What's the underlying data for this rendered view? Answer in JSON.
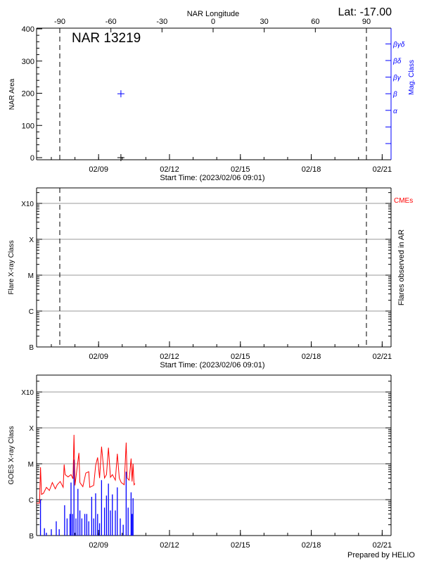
{
  "header": {
    "latitude_label": "Lat: -17.00",
    "footer": "Prepared by HELIO"
  },
  "start_time_label": "Start Time: (2023/02/06 09:01)",
  "xlim": [
    "2023-02-06T09:01",
    "2023-02-21T09:01"
  ],
  "x_tick_labels": [
    "02/09",
    "02/12",
    "02/15",
    "02/18",
    "02/21"
  ],
  "x_tick_dates": [
    "2023-02-09T00:00",
    "2023-02-12T00:00",
    "2023-02-15T00:00",
    "2023-02-18T00:00",
    "2023-02-21T00:00"
  ],
  "limb_times": [
    "2023-02-07T08:35",
    "2023-02-20T08:00"
  ],
  "colors": {
    "area": "#000000",
    "mag": "#0000ff",
    "cme": "#ff0000",
    "goes_long": "#ff0000",
    "goes_short": "#0000ff",
    "grid": "#999999"
  },
  "chart_data": [
    {
      "type": "scatter",
      "title": "NAR 13219",
      "top_xlabel": "NAR Longitude",
      "top_x_ticks": [
        -90,
        -60,
        -30,
        0,
        30,
        60,
        90
      ],
      "top_x_tick_labels": [
        "-90",
        "-60",
        "-30",
        "0",
        "30",
        "60",
        "90"
      ],
      "ylabel": "NAR Area",
      "ylim": [
        0,
        400
      ],
      "y_ticks": [
        0,
        100,
        200,
        300,
        400
      ],
      "y_tick_labels": [
        "0",
        "100",
        "200",
        "300",
        "400"
      ],
      "y2label": "Mag. Class",
      "y2_tick_labels": [
        "",
        "",
        "α",
        "β",
        "βγ",
        "βδ",
        "βγδ"
      ],
      "xlabel": "Start Time: (2023/02/06 09:01)",
      "series": [
        {
          "name": "NAR Area",
          "points": [
            {
              "x": "2023-02-09T22:40",
              "y": 0
            }
          ]
        },
        {
          "name": "Mag. Class",
          "points": [
            {
              "x": "2023-02-09T22:40",
              "y": "β"
            }
          ]
        }
      ]
    },
    {
      "type": "scatter",
      "ylabel": "Flare X-ray Class",
      "y2label": "Flares observed in AR",
      "legend": "CMEs",
      "y_tick_labels": [
        "B",
        "C",
        "M",
        "X",
        "X10"
      ],
      "y_tick_values": [
        1e-07,
        1e-06,
        1e-05,
        0.0001,
        0.001
      ],
      "y_scale": "log",
      "grid": true,
      "xlabel": "Start Time: (2023/02/06 09:01)",
      "series": []
    },
    {
      "type": "line",
      "ylabel": "GOES X-ray Class",
      "y_tick_labels": [
        "B",
        "C",
        "M",
        "X",
        "X10"
      ],
      "y_tick_values": [
        1e-07,
        1e-06,
        1e-05,
        0.0001,
        0.001
      ],
      "y_scale": "log",
      "grid": true,
      "series": [
        {
          "color": "#ff0000",
          "points": [
            [
              "2023-02-06T09:01",
              8e-07
            ],
            [
              "2023-02-06T12:00",
              8e-07
            ],
            [
              "2023-02-06T13:00",
              8e-06
            ],
            [
              "2023-02-06T14:00",
              1.4e-06
            ],
            [
              "2023-02-06T16:00",
              1.5e-06
            ],
            [
              "2023-02-06T19:00",
              2.2e-06
            ],
            [
              "2023-02-06T22:00",
              1.8e-06
            ],
            [
              "2023-02-07T01:00",
              3e-06
            ],
            [
              "2023-02-07T04:00",
              2e-06
            ],
            [
              "2023-02-07T06:00",
              2.6e-06
            ],
            [
              "2023-02-07T09:00",
              3.2e-06
            ],
            [
              "2023-02-07T12:00",
              2.2e-06
            ],
            [
              "2023-02-07T13:00",
              9.5e-06
            ],
            [
              "2023-02-07T14:00",
              5e-06
            ],
            [
              "2023-02-07T17:00",
              4.3e-06
            ],
            [
              "2023-02-07T20:00",
              5e-06
            ],
            [
              "2023-02-07T22:00",
              3.8e-06
            ],
            [
              "2023-02-07T23:00",
              6.4e-05
            ],
            [
              "2023-02-08T00:00",
              2.5e-06
            ],
            [
              "2023-02-08T04:00",
              2e-05
            ],
            [
              "2023-02-08T05:00",
              3e-06
            ],
            [
              "2023-02-08T08:00",
              2.3e-06
            ],
            [
              "2023-02-08T11:00",
              5.5e-06
            ],
            [
              "2023-02-08T14:00",
              6e-06
            ],
            [
              "2023-02-08T15:00",
              2.2e-06
            ],
            [
              "2023-02-08T19:00",
              2.5e-06
            ],
            [
              "2023-02-08T21:00",
              9e-06
            ],
            [
              "2023-02-08T23:00",
              1.5e-05
            ],
            [
              "2023-02-09T01:00",
              4e-06
            ],
            [
              "2023-02-09T03:00",
              3e-05
            ],
            [
              "2023-02-09T06:00",
              4e-06
            ],
            [
              "2023-02-09T08:00",
              5e-06
            ],
            [
              "2023-02-09T10:00",
              2.8e-05
            ],
            [
              "2023-02-09T12:00",
              4.2e-06
            ],
            [
              "2023-02-09T14:00",
              5e-06
            ],
            [
              "2023-02-09T17:00",
              3.5e-06
            ],
            [
              "2023-02-09T19:00",
              1.9e-05
            ],
            [
              "2023-02-09T21:00",
              4e-06
            ],
            [
              "2023-02-09T23:00",
              3e-06
            ],
            [
              "2023-02-10T02:00",
              2.6e-06
            ],
            [
              "2023-02-10T04:00",
              3.9e-05
            ],
            [
              "2023-02-10T05:00",
              4e-06
            ],
            [
              "2023-02-10T07:00",
              3.5e-06
            ],
            [
              "2023-02-10T09:00",
              1.4e-05
            ],
            [
              "2023-02-10T10:00",
              3.2e-06
            ],
            [
              "2023-02-10T11:00",
              1e-05
            ],
            [
              "2023-02-10T12:00",
              2.6e-06
            ],
            [
              "2023-02-10T13:00",
              2.8e-06
            ]
          ]
        },
        {
          "color": "#0000ff",
          "points": [
            [
              "2023-02-06T13:00",
              1e-06
            ],
            [
              "2023-02-06T17:00",
              1.6e-07
            ],
            [
              "2023-02-06T19:00",
              1.2e-07
            ],
            [
              "2023-02-07T00:00",
              1.5e-07
            ],
            [
              "2023-02-07T05:00",
              2.5e-07
            ],
            [
              "2023-02-07T08:00",
              1.5e-07
            ],
            [
              "2023-02-07T13:30",
              7e-07
            ],
            [
              "2023-02-07T16:00",
              3e-07
            ],
            [
              "2023-02-07T19:00",
              4e-07
            ],
            [
              "2023-02-07T20:00",
              3e-06
            ],
            [
              "2023-02-07T21:30",
              4e-07
            ],
            [
              "2023-02-07T23:00",
              1.3e-05
            ],
            [
              "2023-02-08T01:00",
              3e-07
            ],
            [
              "2023-02-08T03:00",
              2e-06
            ],
            [
              "2023-02-08T05:00",
              5e-07
            ],
            [
              "2023-02-08T07:00",
              3e-07
            ],
            [
              "2023-02-08T10:00",
              4e-07
            ],
            [
              "2023-02-08T12:00",
              4e-07
            ],
            [
              "2023-02-08T14:00",
              2.5e-07
            ],
            [
              "2023-02-08T17:00",
              1.2e-06
            ],
            [
              "2023-02-08T19:00",
              3e-07
            ],
            [
              "2023-02-08T21:00",
              1.5e-06
            ],
            [
              "2023-02-08T23:00",
              4e-07
            ],
            [
              "2023-02-09T01:00",
              2.2e-07
            ],
            [
              "2023-02-09T03:00",
              3.5e-06
            ],
            [
              "2023-02-09T06:00",
              6e-07
            ],
            [
              "2023-02-09T08:00",
              1.3e-06
            ],
            [
              "2023-02-09T10:00",
              2.8e-06
            ],
            [
              "2023-02-09T12:00",
              5e-07
            ],
            [
              "2023-02-09T14:00",
              1.4e-06
            ],
            [
              "2023-02-09T17:00",
              5e-07
            ],
            [
              "2023-02-09T19:00",
              2.2e-06
            ],
            [
              "2023-02-09T22:00",
              3e-07
            ],
            [
              "2023-02-10T01:00",
              2e-07
            ],
            [
              "2023-02-10T04:00",
              6e-06
            ],
            [
              "2023-02-10T06:00",
              6e-07
            ],
            [
              "2023-02-10T09:00",
              1.6e-06
            ],
            [
              "2023-02-10T10:00",
              4e-07
            ],
            [
              "2023-02-10T11:00",
              1.1e-06
            ]
          ]
        }
      ]
    }
  ]
}
